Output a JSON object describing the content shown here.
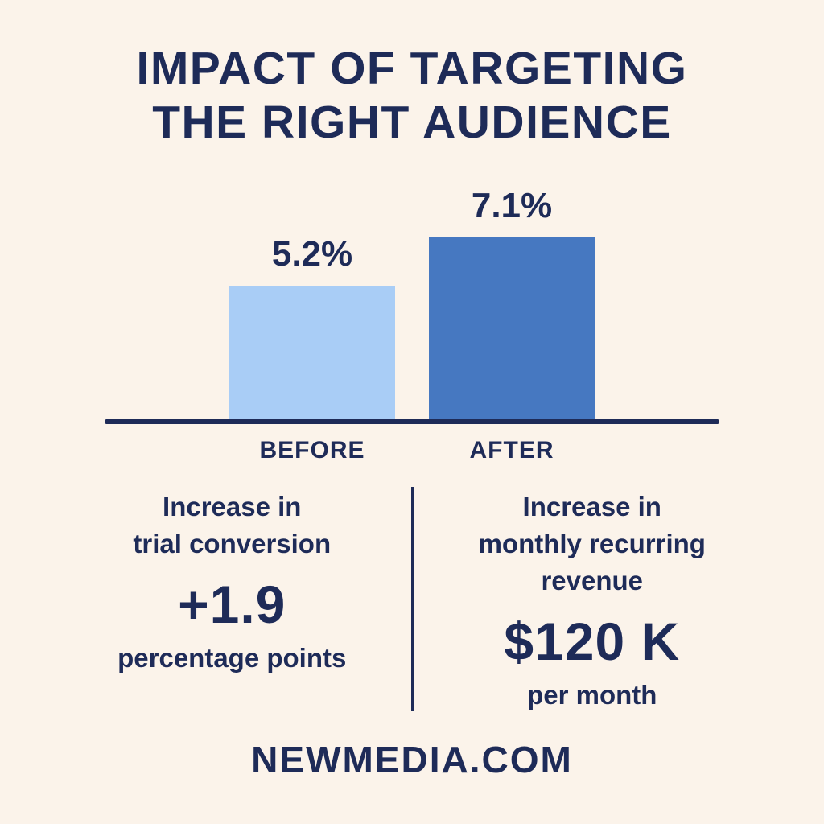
{
  "title": {
    "line1": "IMPACT OF TARGETING",
    "line2": "THE RIGHT AUDIENCE"
  },
  "chart_data": {
    "type": "bar",
    "title": "Impact of targeting the right audience",
    "categories": [
      "BEFORE",
      "AFTER"
    ],
    "values": [
      5.2,
      7.1
    ],
    "value_labels": [
      "5.2%",
      "7.1%"
    ],
    "unit": "%",
    "ylim": [
      0,
      7.5
    ],
    "grid": false,
    "legend": false,
    "bar_colors": [
      "#a9cdf6",
      "#4678c1"
    ],
    "baseline_color": "#1e2b58"
  },
  "stats": {
    "left": {
      "lines": [
        "Increase in",
        "trial conversion"
      ],
      "value": "+1.9",
      "unit": "percentage points"
    },
    "right": {
      "lines": [
        "Increase in",
        "monthly recurring",
        "revenue"
      ],
      "value": "$120 K",
      "unit": "per month"
    }
  },
  "footer": {
    "brand": "NEWMEDIA.COM"
  },
  "colors": {
    "background": "#fbf3ea",
    "text": "#1e2b58",
    "bar_before": "#a9cdf6",
    "bar_after": "#4678c1"
  }
}
